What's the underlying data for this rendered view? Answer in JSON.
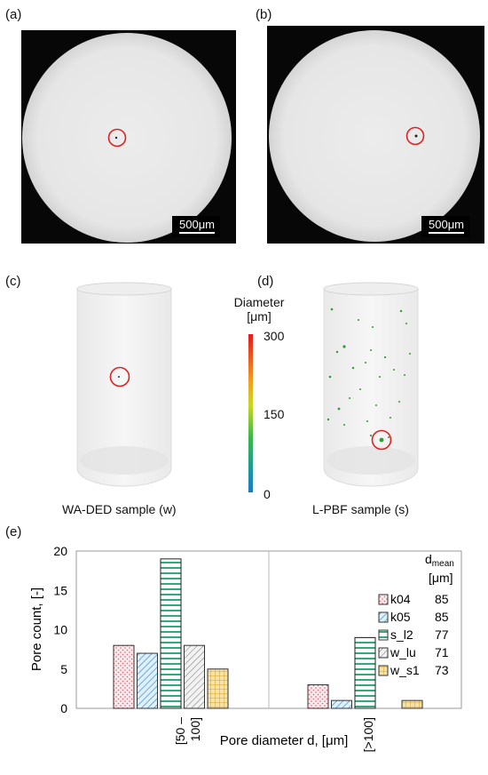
{
  "panels": {
    "a": "(a)",
    "b": "(b)",
    "c": "(c)",
    "d": "(d)",
    "e": "(e)"
  },
  "scale_bar_a": "500μm",
  "scale_bar_b": "500μm",
  "colorbar": {
    "title_line1": "Diameter",
    "title_line2": "[μm]",
    "max_label": "300",
    "mid_label": "150",
    "min_label": "0"
  },
  "caption_c": "WA-DED sample (w)",
  "caption_d": "L-PBF  sample (s)",
  "colors": {
    "highlight_circle": "#e02020",
    "pore_green": "#2e9e2e",
    "k04": "#e27a8a",
    "k05": "#3a8fcf",
    "s_l2": "#1aa06a",
    "w_lu": "#555555",
    "w_s1": "#e0a020"
  },
  "chart_data": {
    "type": "bar",
    "categories": [
      "[50 – 100]",
      "[>100]"
    ],
    "series": [
      {
        "name": "k04",
        "values": [
          8,
          3
        ],
        "dmean": "85"
      },
      {
        "name": "k05",
        "values": [
          7,
          1
        ],
        "dmean": "85"
      },
      {
        "name": "s_l2",
        "values": [
          19,
          9
        ],
        "dmean": "77"
      },
      {
        "name": "w_lu",
        "values": [
          8,
          0
        ],
        "dmean": "71"
      },
      {
        "name": "w_s1",
        "values": [
          5,
          1
        ],
        "dmean": "73"
      }
    ],
    "xlabel": "Pore diameter d, [μm]",
    "ylabel": "Pore count, [-]",
    "ylim": [
      0,
      20
    ],
    "yticks": [
      "0",
      "5",
      "10",
      "15",
      "20"
    ],
    "category_label_1_line1": "[50 –",
    "category_label_1_line2": "100]",
    "category_label_2": "[>100]",
    "legend_header_line1": "d",
    "legend_header_sub": "mean",
    "legend_header_line2": "[μm]",
    "legend_position": "right"
  }
}
